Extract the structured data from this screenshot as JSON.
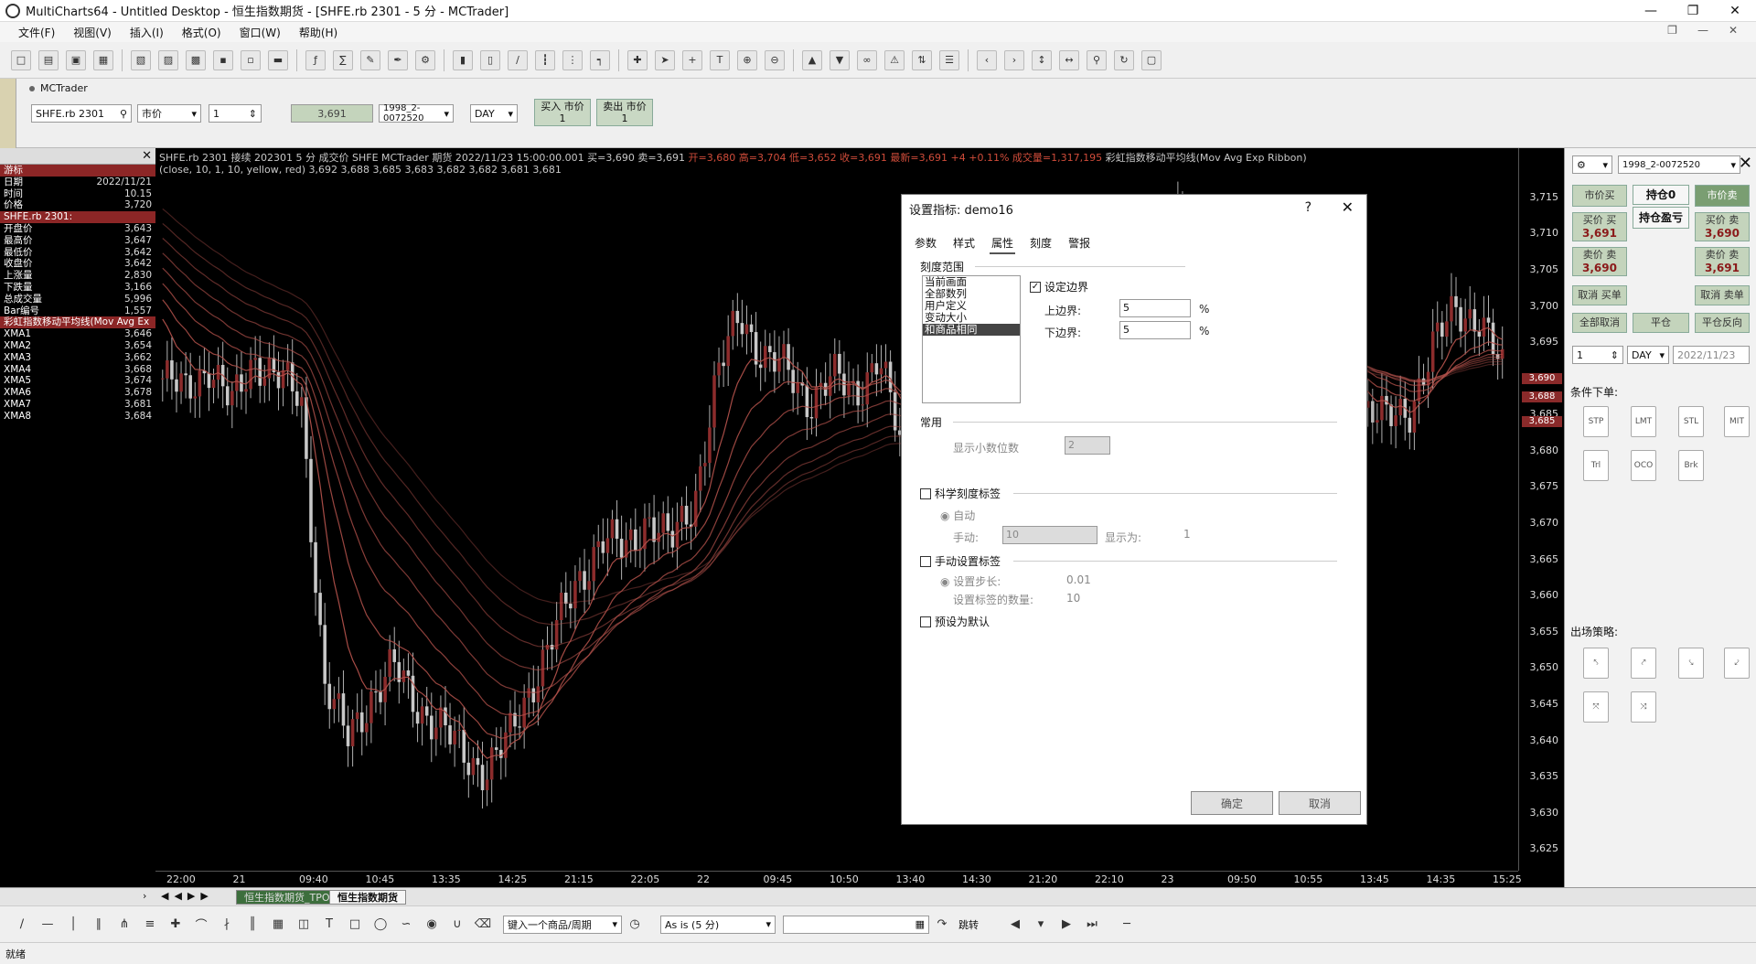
{
  "window": {
    "title": "MultiCharts64 - Untitled Desktop - 恒生指数期货 - [SHFE.rb 2301 - 5 分 - MCTrader]"
  },
  "menu": [
    "文件(F)",
    "视图(V)",
    "插入(I)",
    "格式(O)",
    "窗口(W)",
    "帮助(H)"
  ],
  "tradebar": {
    "account_label": "MCTrader",
    "symbol": "SHFE.rb 2301",
    "order_type": "市价",
    "quantity": "1",
    "price": "3,691",
    "account": "1998_2-0072520",
    "tif": "DAY",
    "buy_label": "买入 市价",
    "buy_qty": "1",
    "sell_label": "卖出 市价",
    "sell_qty": "1"
  },
  "data_window": {
    "rows": [
      {
        "k": "游标",
        "v": "",
        "sec": true
      },
      {
        "k": "日期",
        "v": "2022/11/21"
      },
      {
        "k": "时间",
        "v": "10.15"
      },
      {
        "k": "价格",
        "v": "3,720"
      },
      {
        "k": "SHFE.rb 2301:",
        "v": "",
        "sec": true
      },
      {
        "k": "开盘价",
        "v": "3,643"
      },
      {
        "k": "最高价",
        "v": "3,647"
      },
      {
        "k": "最低价",
        "v": "3,642"
      },
      {
        "k": "收盘价",
        "v": "3,642"
      },
      {
        "k": "上涨量",
        "v": "2,830"
      },
      {
        "k": "下跌量",
        "v": "3,166"
      },
      {
        "k": "总成交量",
        "v": "5,996"
      },
      {
        "k": "Bar编号",
        "v": "1,557"
      },
      {
        "k": "彩虹指数移动平均线(Mov Avg Ex",
        "v": "",
        "sec": true
      },
      {
        "k": "XMA1",
        "v": "3,646"
      },
      {
        "k": "XMA2",
        "v": "3,654"
      },
      {
        "k": "XMA3",
        "v": "3,662"
      },
      {
        "k": "XMA4",
        "v": "3,668"
      },
      {
        "k": "XMA5",
        "v": "3,674"
      },
      {
        "k": "XMA6",
        "v": "3,678"
      },
      {
        "k": "XMA7",
        "v": "3,681"
      },
      {
        "k": "XMA8",
        "v": "3,684"
      }
    ]
  },
  "chart": {
    "header_line1": "SHFE.rb 2301  接续 202301 5 分  成交价 SHFE MCTrader 期货 2022/11/23 15:00:00.001 买=3,690 卖=3,691",
    "header_line1_b": "开=3,680 高=3,704 低=3,652 收=3,691 最新=3,691 +4   +0.11% 成交量=1,317,195",
    "header_line1_c": "彩虹指数移动平均线(Mov Avg Exp Ribbon)",
    "header_line2": "(close, 10, 1, 10, yellow, red)  3,692  3,688  3,685  3,683  3,682  3,682  3,681  3,681",
    "candle_color": "#8c2c2c",
    "ribbon_color": "#b0504a",
    "price_tags": [
      "3,690",
      "3,688",
      "3,685"
    ]
  },
  "chart_data": {
    "type": "line",
    "title": "",
    "xlabel": "",
    "ylabel": "",
    "ylim": [
      3622,
      3718
    ],
    "y_ticks": [
      3625,
      3630,
      3635,
      3640,
      3645,
      3650,
      3655,
      3660,
      3665,
      3670,
      3675,
      3680,
      3685,
      3690,
      3695,
      3700,
      3705,
      3710,
      3715
    ],
    "x_ticks": [
      "22:00",
      "21",
      "09:40",
      "10:45",
      "13:35",
      "14:25",
      "21:15",
      "22:05",
      "22",
      "09:45",
      "10:50",
      "13:40",
      "14:30",
      "21:20",
      "22:10",
      "23",
      "09:50",
      "10:55",
      "13:45",
      "14:35",
      "15:25"
    ],
    "close_path": [
      3690,
      3688,
      3692,
      3686,
      3693,
      3690,
      3687,
      3648,
      3640,
      3646,
      3650,
      3645,
      3642,
      3638,
      3636,
      3640,
      3648,
      3655,
      3662,
      3668,
      3666,
      3671,
      3667,
      3673,
      3690,
      3699,
      3693,
      3691,
      3687,
      3690,
      3688,
      3693,
      3680,
      3676,
      3681,
      3688,
      3683,
      3680,
      3690,
      3671,
      3682,
      3686,
      3697,
      3708,
      3712,
      3705,
      3696,
      3690,
      3688,
      3692,
      3694,
      3690,
      3686,
      3684,
      3686,
      3694,
      3700,
      3698,
      3691
    ]
  },
  "right_panel": {
    "account": "1998_2-0072520",
    "market_buy": "市价买",
    "position": "持仓0",
    "pnl": "持仓盈亏",
    "market_sell": "市价卖",
    "bid_label": "买价 买",
    "bid_price": "3,691",
    "ask_label": "卖价 卖",
    "ask_price": "3,690",
    "bid_label2": "买价 卖",
    "bid_price2": "3,690",
    "ask_label2": "卖价 卖",
    "ask_price2": "3,691",
    "cancel_buy": "取消 买单",
    "cancel_sell": "取消 卖单",
    "cancel_all": "全部取消",
    "flatten": "平仓",
    "reverse": "平仓反向",
    "qty": "1",
    "tif": "DAY",
    "date": "2022/11/23",
    "cond_order_label": "条件下单:",
    "exit_strategy_label": "出场策略:"
  },
  "tabs": {
    "sheet1": "恒生指数期货_TPO",
    "sheet2": "恒生指数期货"
  },
  "drawbar": {
    "symbol_input_placeholder": "键入一个商品/周期",
    "mode": "As is (5 分)",
    "goto": "跳转"
  },
  "status": {
    "text": "就绪"
  },
  "dialog": {
    "title": "设置指标: demo16",
    "help": "?",
    "tabs": [
      "参数",
      "样式",
      "属性",
      "刻度",
      "警报"
    ],
    "active_tab": 2,
    "scale_range_label": "刻度范围",
    "scale_options": [
      "当前画面",
      "全部数列",
      "用户定义",
      "变动大小",
      "和商品相同"
    ],
    "selected_scale": 4,
    "set_margin_label": "设定边界",
    "upper_margin_label": "上边界:",
    "upper_margin_value": "5",
    "lower_margin_label": "下边界:",
    "lower_margin_value": "5",
    "percent": "%",
    "common_label": "常用",
    "decimals_label": "显示小数位数",
    "decimals_value": "2",
    "sci_label": "科学刻度标签",
    "auto_label": "自动",
    "manual_label": "手动:",
    "manual_value": "10",
    "display_label": "显示为:",
    "display_value": "1",
    "manual_tags_label": "手动设置标签",
    "step_label": "设置步长:",
    "step_value": "0.01",
    "count_label": "设置标签的数量:",
    "count_value": "10",
    "default_label": "预设为默认",
    "ok": "确定",
    "cancel": "取消"
  }
}
